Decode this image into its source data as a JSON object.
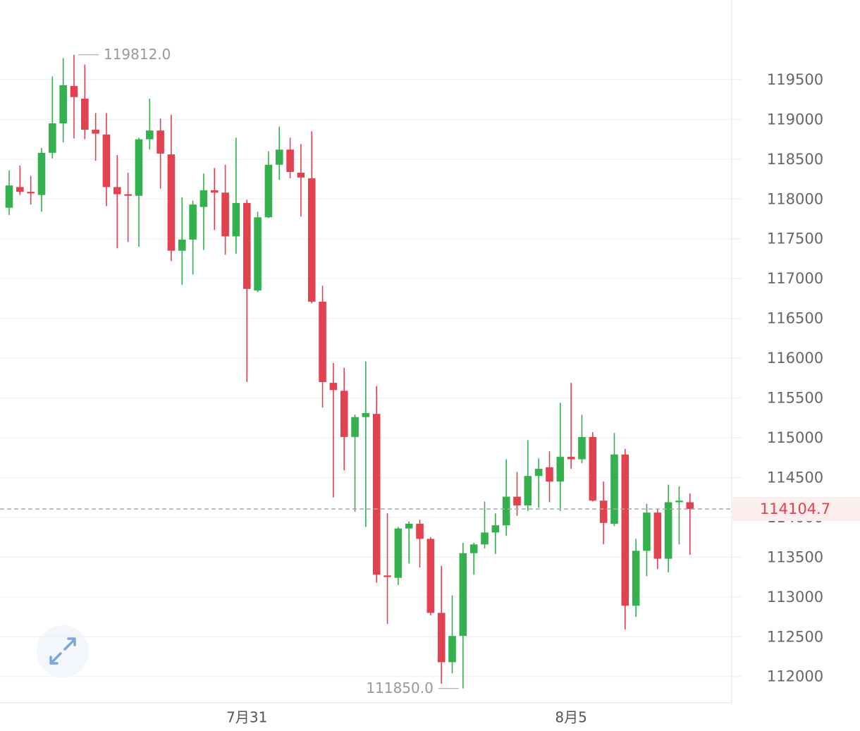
{
  "chart_data": {
    "type": "candlestick",
    "categories": [
      null,
      null,
      null,
      null,
      null,
      null,
      null,
      null,
      null,
      null,
      null,
      null,
      null,
      null,
      null,
      null,
      null,
      null,
      null,
      null,
      null,
      null,
      "7月31",
      null,
      null,
      null,
      null,
      null,
      null,
      null,
      null,
      null,
      null,
      null,
      null,
      null,
      null,
      null,
      null,
      null,
      null,
      null,
      null,
      null,
      null,
      null,
      null,
      null,
      null,
      null,
      null,
      null,
      "8月5",
      null,
      null,
      null,
      null,
      null,
      null,
      null,
      null,
      null,
      null,
      null
    ],
    "open": [
      117890,
      118150,
      118090,
      118050,
      118580,
      118950,
      119420,
      119260,
      118870,
      118810,
      118150,
      118060,
      118040,
      118750,
      118860,
      118560,
      117350,
      117490,
      117900,
      118110,
      118080,
      117530,
      117950,
      116850,
      117770,
      118430,
      118620,
      118330,
      118260,
      116710,
      115690,
      115590,
      115010,
      115260,
      115300,
      113270,
      113240,
      113860,
      113920,
      113730,
      112800,
      112180,
      112510,
      113550,
      113660,
      113810,
      113900,
      114260,
      114150,
      114520,
      114630,
      114450,
      114760,
      114730,
      115010,
      114210,
      113920,
      114790,
      112890,
      113580,
      114060,
      113480,
      114190,
      114190
    ],
    "high": [
      118360,
      118420,
      118290,
      118640,
      119540,
      119770,
      119812,
      119690,
      119080,
      119080,
      118550,
      118330,
      118770,
      119260,
      119010,
      119060,
      118020,
      117980,
      118320,
      118390,
      118430,
      118770,
      117990,
      117840,
      118600,
      118910,
      118770,
      118690,
      118850,
      116910,
      115940,
      115880,
      115290,
      115960,
      115650,
      114050,
      113880,
      113950,
      113970,
      113750,
      113390,
      113020,
      113680,
      113680,
      114200,
      114050,
      114730,
      114570,
      114970,
      114740,
      114830,
      115440,
      115690,
      115290,
      115070,
      114450,
      115060,
      114860,
      113730,
      114170,
      114100,
      114410,
      114390,
      114300
    ],
    "low": [
      117800,
      118050,
      117930,
      117840,
      118510,
      118710,
      118760,
      118750,
      118480,
      117910,
      117380,
      117460,
      117400,
      118620,
      118130,
      117220,
      116920,
      117050,
      117360,
      117610,
      117300,
      117310,
      115700,
      116830,
      117760,
      118240,
      118260,
      117780,
      116690,
      115380,
      114250,
      114590,
      114070,
      113880,
      113180,
      112660,
      113150,
      113420,
      113370,
      112770,
      111910,
      112040,
      111850,
      113280,
      113610,
      113540,
      113770,
      114020,
      114080,
      114120,
      114190,
      114080,
      114610,
      114680,
      114200,
      113660,
      113890,
      112590,
      112750,
      113260,
      113350,
      113310,
      113660,
      113530
    ],
    "close": [
      118170,
      118090,
      118070,
      118580,
      118950,
      119430,
      119280,
      118870,
      118820,
      118150,
      118060,
      118040,
      118750,
      118860,
      118570,
      117350,
      117490,
      117930,
      118110,
      118080,
      117530,
      117950,
      116870,
      117770,
      118430,
      118620,
      118340,
      118270,
      116710,
      115700,
      115600,
      115010,
      115260,
      115310,
      113280,
      113250,
      113860,
      113920,
      113730,
      112800,
      112180,
      112510,
      113550,
      113660,
      113810,
      113900,
      114260,
      114150,
      114520,
      114610,
      114450,
      114760,
      114730,
      115010,
      114210,
      113930,
      114790,
      112890,
      113580,
      114060,
      113480,
      114190,
      114210,
      114104.7
    ],
    "up_color": "#34b04f",
    "down_color": "#e2424f",
    "ylim": [
      111670,
      120500
    ],
    "yticks": [
      112000,
      112500,
      113000,
      113500,
      114000,
      114500,
      115000,
      115500,
      116000,
      116500,
      117000,
      117500,
      118000,
      118500,
      119000,
      119500
    ],
    "grid": true,
    "max_label": {
      "value": 119812,
      "label": "119812.0"
    },
    "min_label": {
      "value": 111850,
      "label": "111850.0"
    },
    "last_price": 114104.7
  }
}
